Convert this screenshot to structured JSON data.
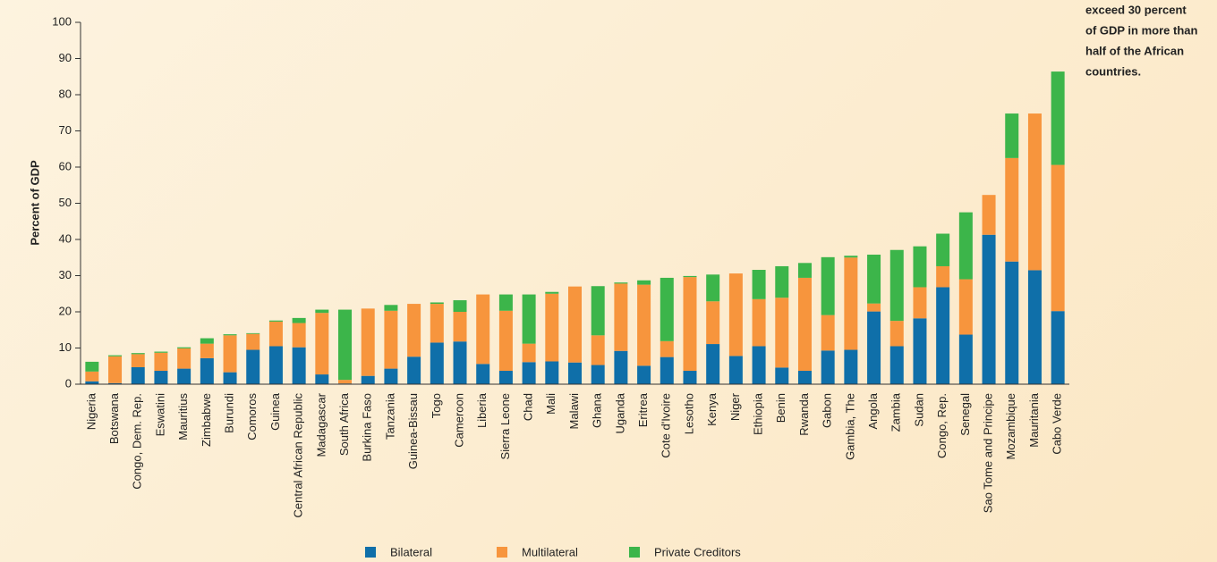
{
  "chart_data": {
    "type": "stacked_bar",
    "ylabel": "Percent of GDP",
    "annotation": [
      "exceed 30 percent",
      "of GDP in more than",
      "half of the African",
      "countries."
    ],
    "categories": [
      "Nigeria",
      "Botswana",
      "Congo, Dem. Rep.",
      "Eswatini",
      "Mauritius",
      "Zimbabwe",
      "Burundi",
      "Comoros",
      "Guinea",
      "Central African Republic",
      "Madagascar",
      "South Africa",
      "Burkina Faso",
      "Tanzania",
      "Guinea-Bissau",
      "Togo",
      "Cameroon",
      "Liberia",
      "Sierra Leone",
      "Chad",
      "Mali",
      "Malawi",
      "Ghana",
      "Uganda",
      "Eritrea",
      "Cote d'Ivoire",
      "Lesotho",
      "Kenya",
      "Niger",
      "Ethiopia",
      "Benin",
      "Rwanda",
      "Gabon",
      "Gambia, The",
      "Angola",
      "Zambia",
      "Sudan",
      "Congo, Rep.",
      "Senegal",
      "Sao Tome and Principe",
      "Mozambique",
      "Mauritania",
      "Cabo Verde"
    ],
    "series": [
      {
        "name": "Bilateral",
        "color": "#0f6fa9",
        "values": [
          0.8,
          0.3,
          4.7,
          3.7,
          4.3,
          7.2,
          3.3,
          9.5,
          10.5,
          10.2,
          2.7,
          0.2,
          2.3,
          4.3,
          7.6,
          11.5,
          11.8,
          5.6,
          3.7,
          6.1,
          6.3,
          6.0,
          5.3,
          9.2,
          5.1,
          7.5,
          3.7,
          11.1,
          7.8,
          10.5,
          4.6,
          3.7,
          9.3,
          9.5,
          20.1,
          10.5,
          18.2,
          26.8,
          13.7,
          41.3,
          33.9,
          31.5,
          20.2
        ]
      },
      {
        "name": "Multilateral",
        "color": "#f7953d",
        "values": [
          2.7,
          7.4,
          3.6,
          5.0,
          5.6,
          4.0,
          10.2,
          4.4,
          6.8,
          6.7,
          17.0,
          1.0,
          18.6,
          16.0,
          14.6,
          10.7,
          8.2,
          19.2,
          16.6,
          5.1,
          18.7,
          21.0,
          8.2,
          18.6,
          22.4,
          4.4,
          25.9,
          11.8,
          22.8,
          13.0,
          19.3,
          25.7,
          9.8,
          25.5,
          2.2,
          7.0,
          8.6,
          5.8,
          15.3,
          11.0,
          28.6,
          43.3,
          40.4
        ]
      },
      {
        "name": "Private Creditors",
        "color": "#3cb54a",
        "values": [
          2.7,
          0.3,
          0.3,
          0.3,
          0.3,
          1.5,
          0.3,
          0.2,
          0.3,
          1.4,
          0.9,
          19.4,
          0,
          1.6,
          0,
          0.4,
          3.2,
          0,
          4.5,
          13.6,
          0.5,
          0,
          13.6,
          0.3,
          1.2,
          17.5,
          0.3,
          7.4,
          0,
          8.1,
          8.7,
          4.1,
          16.0,
          0.5,
          13.5,
          19.6,
          11.3,
          9.0,
          18.5,
          0,
          12.3,
          0,
          25.8
        ]
      }
    ],
    "ylim": [
      0,
      100
    ],
    "yticks": [
      0,
      10,
      20,
      30,
      40,
      50,
      60,
      70,
      80,
      90,
      100
    ]
  }
}
